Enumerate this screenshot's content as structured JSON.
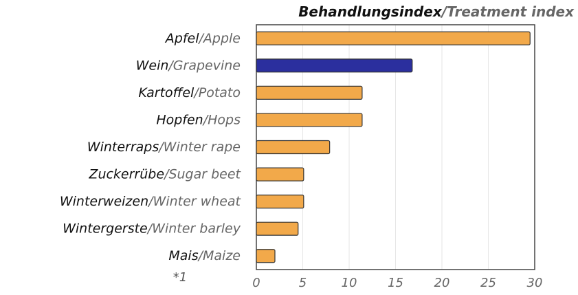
{
  "chart_data": {
    "type": "barh",
    "title": "Behandlungsindex/Treatment index",
    "categories": [
      "Apfel/Apple",
      "Wein/Grapevine",
      "Kartoffel/Potato",
      "Hopfen/Hops",
      "Winterraps/Winter rape",
      "Zuckerrübe/Sugar beet",
      "Winterweizen/Winter wheat",
      "Wintergerste/Winter barley",
      "Mais/Maize"
    ],
    "values": [
      29.5,
      16.8,
      11.4,
      11.4,
      7.9,
      5.1,
      5.1,
      4.5,
      2.0
    ],
    "colors": [
      "#f2a94a",
      "#2b2f9e",
      "#f2a94a",
      "#f2a94a",
      "#f2a94a",
      "#f2a94a",
      "#f2a94a",
      "#f2a94a",
      "#f2a94a"
    ],
    "annotation": "*1",
    "xlim": [
      0,
      30
    ],
    "xticks": [
      0,
      5,
      10,
      15,
      20,
      25,
      30
    ],
    "grid": true
  }
}
